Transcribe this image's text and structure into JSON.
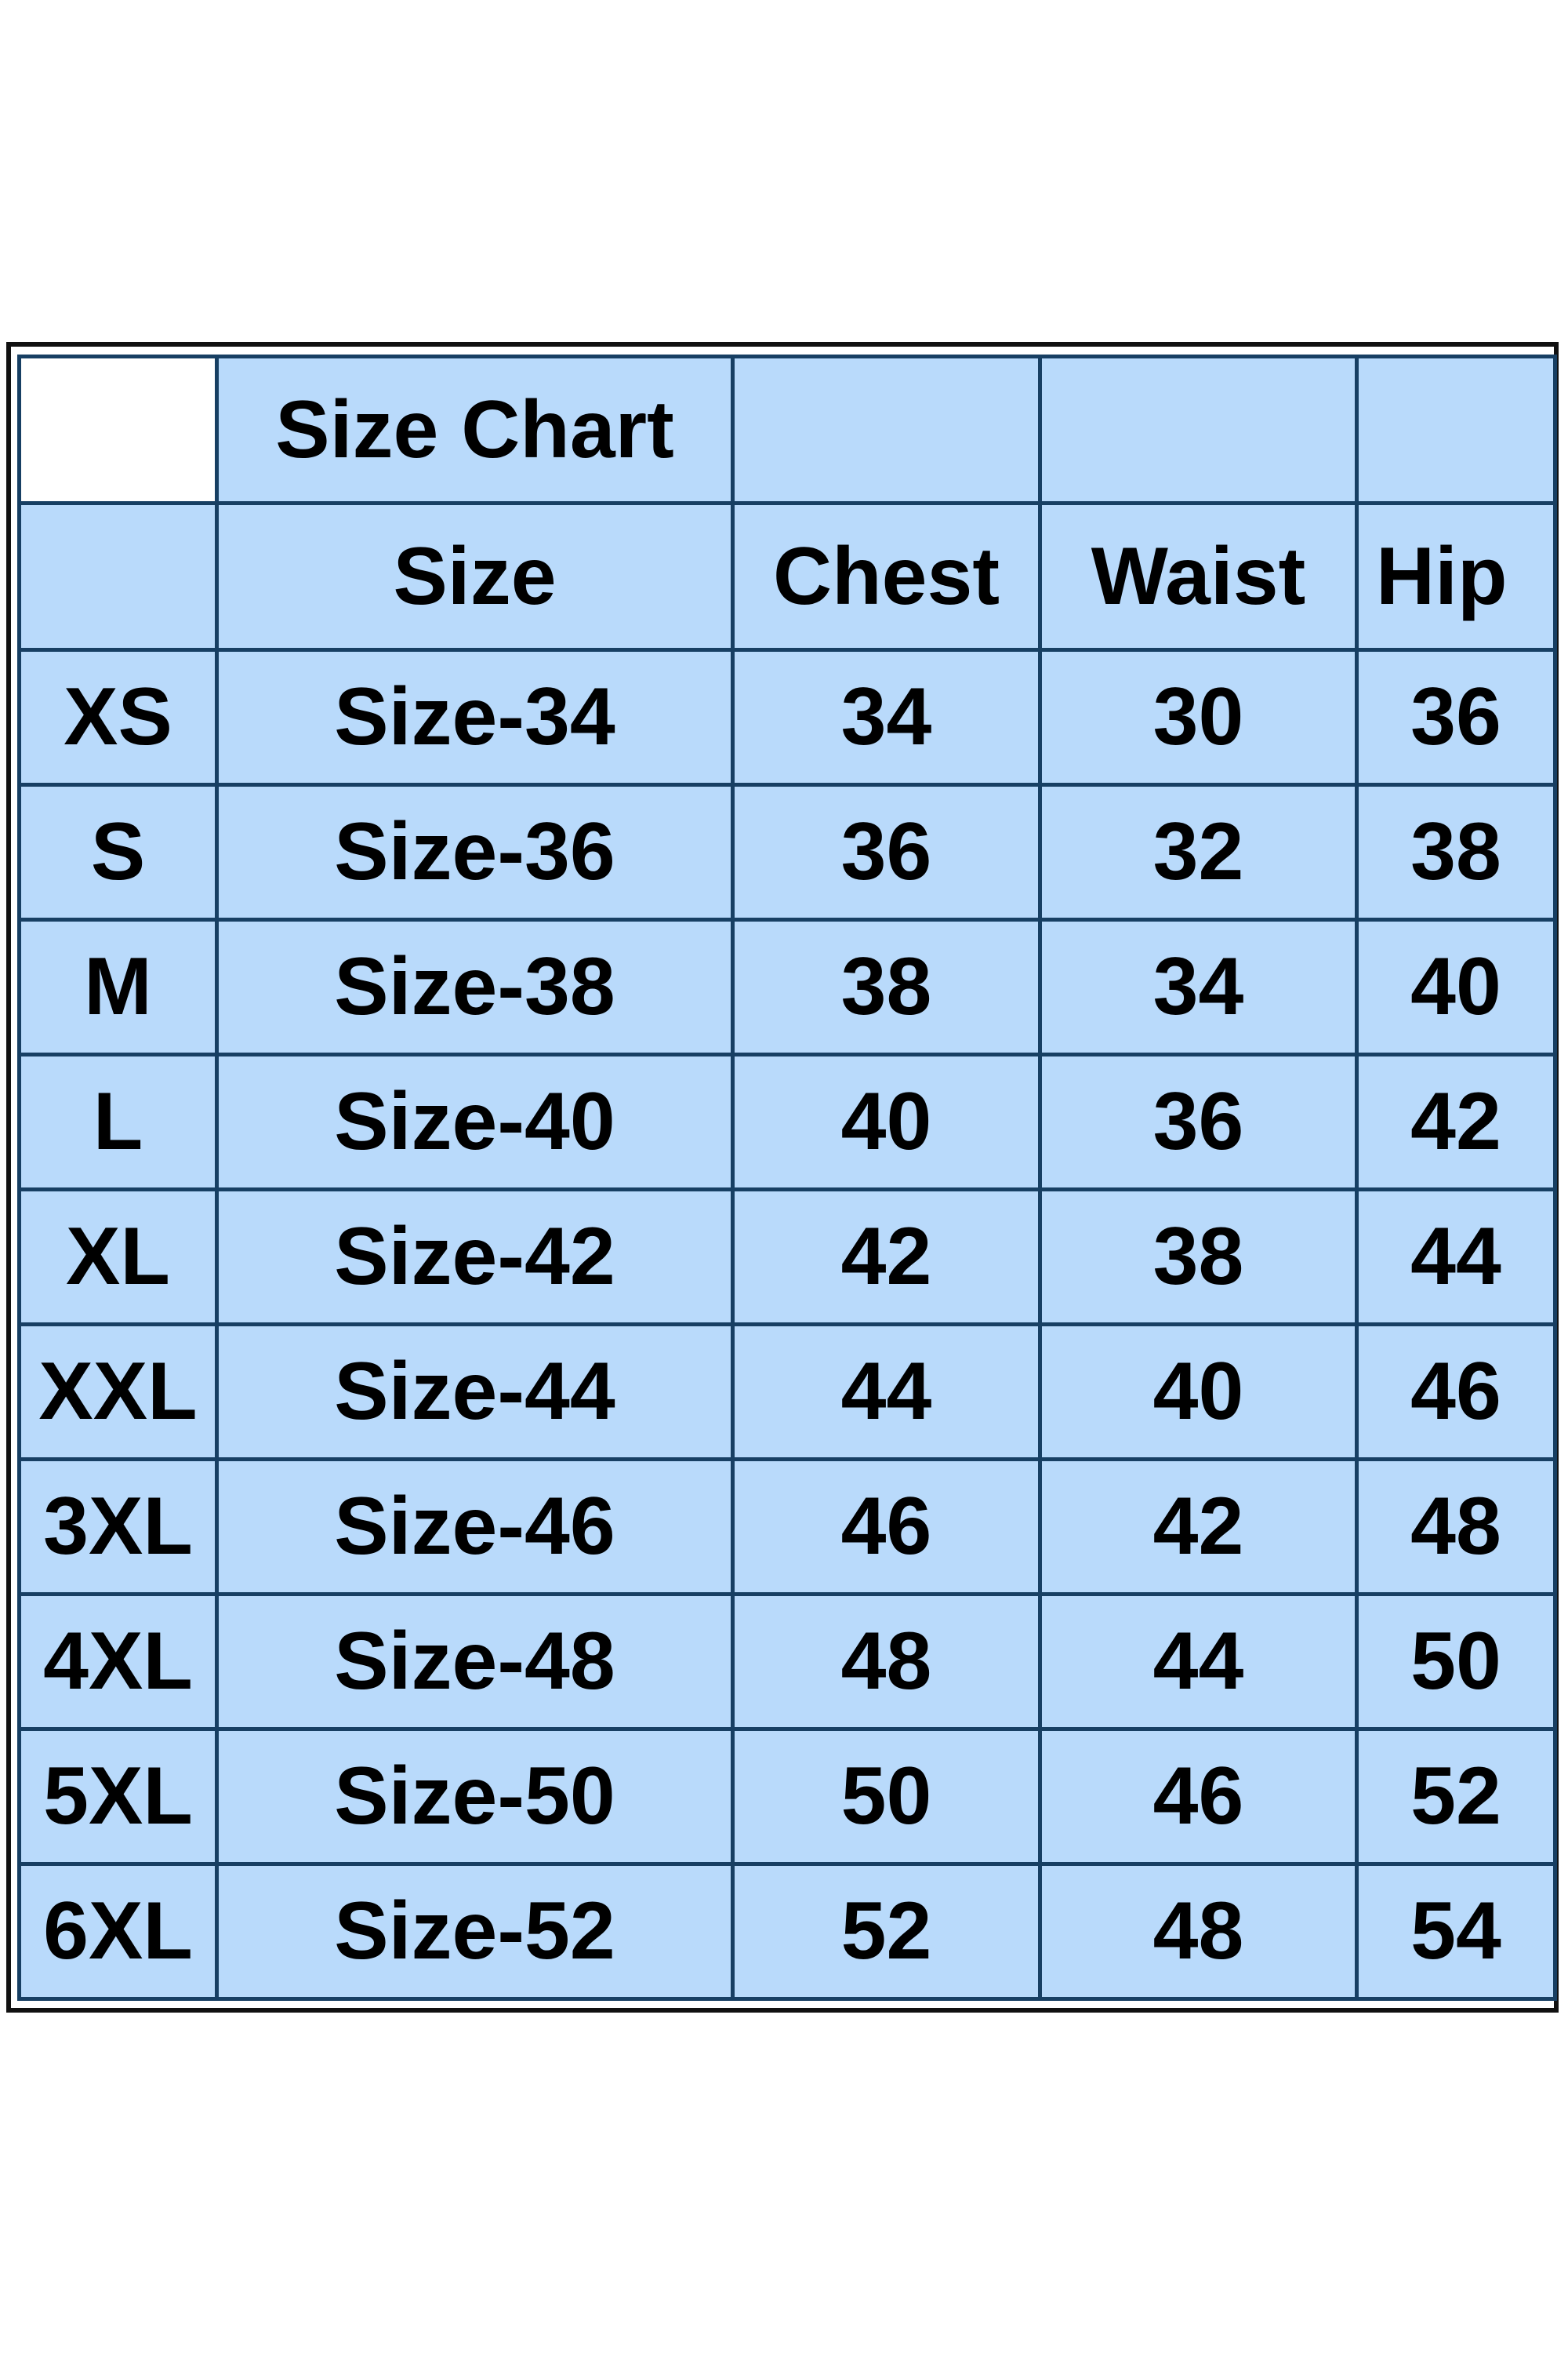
{
  "title": "Size Chart",
  "columns": [
    "",
    "Size",
    "Chest",
    "Waist",
    "Hip"
  ],
  "rows": [
    [
      "XS",
      "Size-34",
      "34",
      "30",
      "36"
    ],
    [
      "S",
      "Size-36",
      "36",
      "32",
      "38"
    ],
    [
      "M",
      "Size-38",
      "38",
      "34",
      "40"
    ],
    [
      "L",
      "Size-40",
      "40",
      "36",
      "42"
    ],
    [
      "XL",
      "Size-42",
      "42",
      "38",
      "44"
    ],
    [
      "XXL",
      "Size-44",
      "44",
      "40",
      "46"
    ],
    [
      "3XL",
      "Size-46",
      "46",
      "42",
      "48"
    ],
    [
      "4XL",
      "Size-48",
      "48",
      "44",
      "50"
    ],
    [
      "5XL",
      "Size-50",
      "50",
      "46",
      "52"
    ],
    [
      "6XL",
      "Size-52",
      "52",
      "48",
      "54"
    ]
  ],
  "colors": {
    "cell_fill": "#b9dafb",
    "grid": "#173f63",
    "frame": "#111111"
  }
}
